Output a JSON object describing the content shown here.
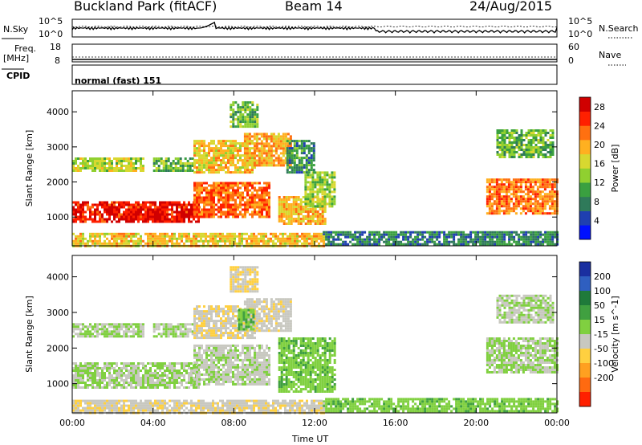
{
  "header": {
    "station": "Buckland Park (fitACF)",
    "beam": "Beam 14",
    "date": "24/Aug/2015"
  },
  "top_panels": {
    "nsky_label": "N.Sky",
    "nsky_ticks": [
      "10^5",
      "10^0"
    ],
    "nsearch_label": "N.Search",
    "nsearch_ticks": [
      "10^5",
      "10^0"
    ],
    "freq_label": "Freq.",
    "freq_unit": "[MHz]",
    "freq_ticks": [
      "18",
      "8"
    ],
    "nave_label": "Nave",
    "nave_ticks": [
      "60",
      "0"
    ],
    "cpid_label": "CPID",
    "cpid_value": "normal (fast) 151"
  },
  "x_axis": {
    "label": "Time UT",
    "ticks": [
      "00:00",
      "04:00",
      "08:00",
      "12:00",
      "16:00",
      "20:00",
      "00:00"
    ]
  },
  "chart_data": [
    {
      "type": "heatmap",
      "title": "",
      "xlabel": "Time UT",
      "ylabel": "Slant Range [km]",
      "y_ticks": [
        "1000",
        "2000",
        "3000",
        "4000"
      ],
      "ylim": [
        180,
        4600
      ],
      "xlim": [
        0,
        24
      ],
      "colorbar": {
        "label": "Power [dB]",
        "ticks": [
          "4",
          "8",
          "12",
          "16",
          "20",
          "24",
          "28"
        ],
        "range": [
          0,
          30
        ],
        "colors": [
          "#0010ff",
          "#1f3fb0",
          "#2f7a5a",
          "#3aa040",
          "#90d030",
          "#d8d830",
          "#ffb020",
          "#ff7010",
          "#ff2000",
          "#d00000"
        ]
      },
      "regions": [
        {
          "t": [
            0.0,
            6.2
          ],
          "r": [
            900,
            1450
          ],
          "level": 27
        },
        {
          "t": [
            6.0,
            9.8
          ],
          "r": [
            1000,
            2000
          ],
          "level": 23
        },
        {
          "t": [
            0.0,
            3.5
          ],
          "r": [
            2300,
            2700
          ],
          "level": 15
        },
        {
          "t": [
            4.0,
            6.0
          ],
          "r": [
            2300,
            2700
          ],
          "level": 12
        },
        {
          "t": [
            6.0,
            9.0
          ],
          "r": [
            2300,
            3200
          ],
          "level": 18
        },
        {
          "t": [
            8.5,
            10.8
          ],
          "r": [
            2500,
            3400
          ],
          "level": 20
        },
        {
          "t": [
            7.8,
            9.2
          ],
          "r": [
            3600,
            4300
          ],
          "level": 12
        },
        {
          "t": [
            10.2,
            12.5
          ],
          "r": [
            800,
            1600
          ],
          "level": 19
        },
        {
          "t": [
            11.5,
            13.0
          ],
          "r": [
            1300,
            2300
          ],
          "level": 14
        },
        {
          "t": [
            10.6,
            12.0
          ],
          "r": [
            2300,
            3200
          ],
          "level": 9
        },
        {
          "t": [
            12.4,
            24.0
          ],
          "r": [
            200,
            600
          ],
          "level": 8
        },
        {
          "t": [
            20.5,
            24.0
          ],
          "r": [
            1100,
            2100
          ],
          "level": 22
        },
        {
          "t": [
            21.0,
            23.8
          ],
          "r": [
            2700,
            3500
          ],
          "level": 12
        },
        {
          "t": [
            0.0,
            12.4
          ],
          "r": [
            200,
            550
          ],
          "level": 18
        }
      ]
    },
    {
      "type": "heatmap",
      "title": "",
      "xlabel": "Time UT",
      "ylabel": "Slant Range [km]",
      "y_ticks": [
        "1000",
        "2000",
        "3000",
        "4000"
      ],
      "ylim": [
        180,
        4600
      ],
      "xlim": [
        0,
        24
      ],
      "colorbar": {
        "label": "Velocity [m s^-1]",
        "ticks": [
          "200",
          "100",
          "50",
          "15",
          "-15",
          "-50",
          "-100",
          "-200"
        ],
        "range": [
          -250,
          250
        ],
        "colors": [
          "#1a2fa0",
          "#2f5fc0",
          "#1f7a3a",
          "#40a040",
          "#80d040",
          "#c8c8c0",
          "#ffd040",
          "#ffa020",
          "#ff6a10",
          "#ff2000"
        ]
      },
      "regions": [
        {
          "t": [
            0.0,
            6.2
          ],
          "r": [
            900,
            1600
          ],
          "level": 0
        },
        {
          "t": [
            6.0,
            9.8
          ],
          "r": [
            1000,
            2100
          ],
          "level": -10
        },
        {
          "t": [
            0.0,
            3.5
          ],
          "r": [
            2300,
            2700
          ],
          "level": 0
        },
        {
          "t": [
            4.0,
            6.0
          ],
          "r": [
            2300,
            2700
          ],
          "level": 0
        },
        {
          "t": [
            6.0,
            9.0
          ],
          "r": [
            2300,
            3200
          ],
          "level": -40
        },
        {
          "t": [
            8.5,
            10.8
          ],
          "r": [
            2500,
            3400
          ],
          "level": -30
        },
        {
          "t": [
            8.2,
            9.0
          ],
          "r": [
            2500,
            3100
          ],
          "level": 40
        },
        {
          "t": [
            7.8,
            9.2
          ],
          "r": [
            3600,
            4300
          ],
          "level": -45
        },
        {
          "t": [
            10.2,
            13.0
          ],
          "r": [
            800,
            2300
          ],
          "level": 35
        },
        {
          "t": [
            12.4,
            24.0
          ],
          "r": [
            200,
            600
          ],
          "level": 30
        },
        {
          "t": [
            20.5,
            24.0
          ],
          "r": [
            1300,
            2300
          ],
          "level": 0
        },
        {
          "t": [
            21.0,
            23.8
          ],
          "r": [
            2700,
            3500
          ],
          "level": 0
        },
        {
          "t": [
            0.0,
            12.4
          ],
          "r": [
            200,
            550
          ],
          "level": -40
        }
      ]
    }
  ]
}
